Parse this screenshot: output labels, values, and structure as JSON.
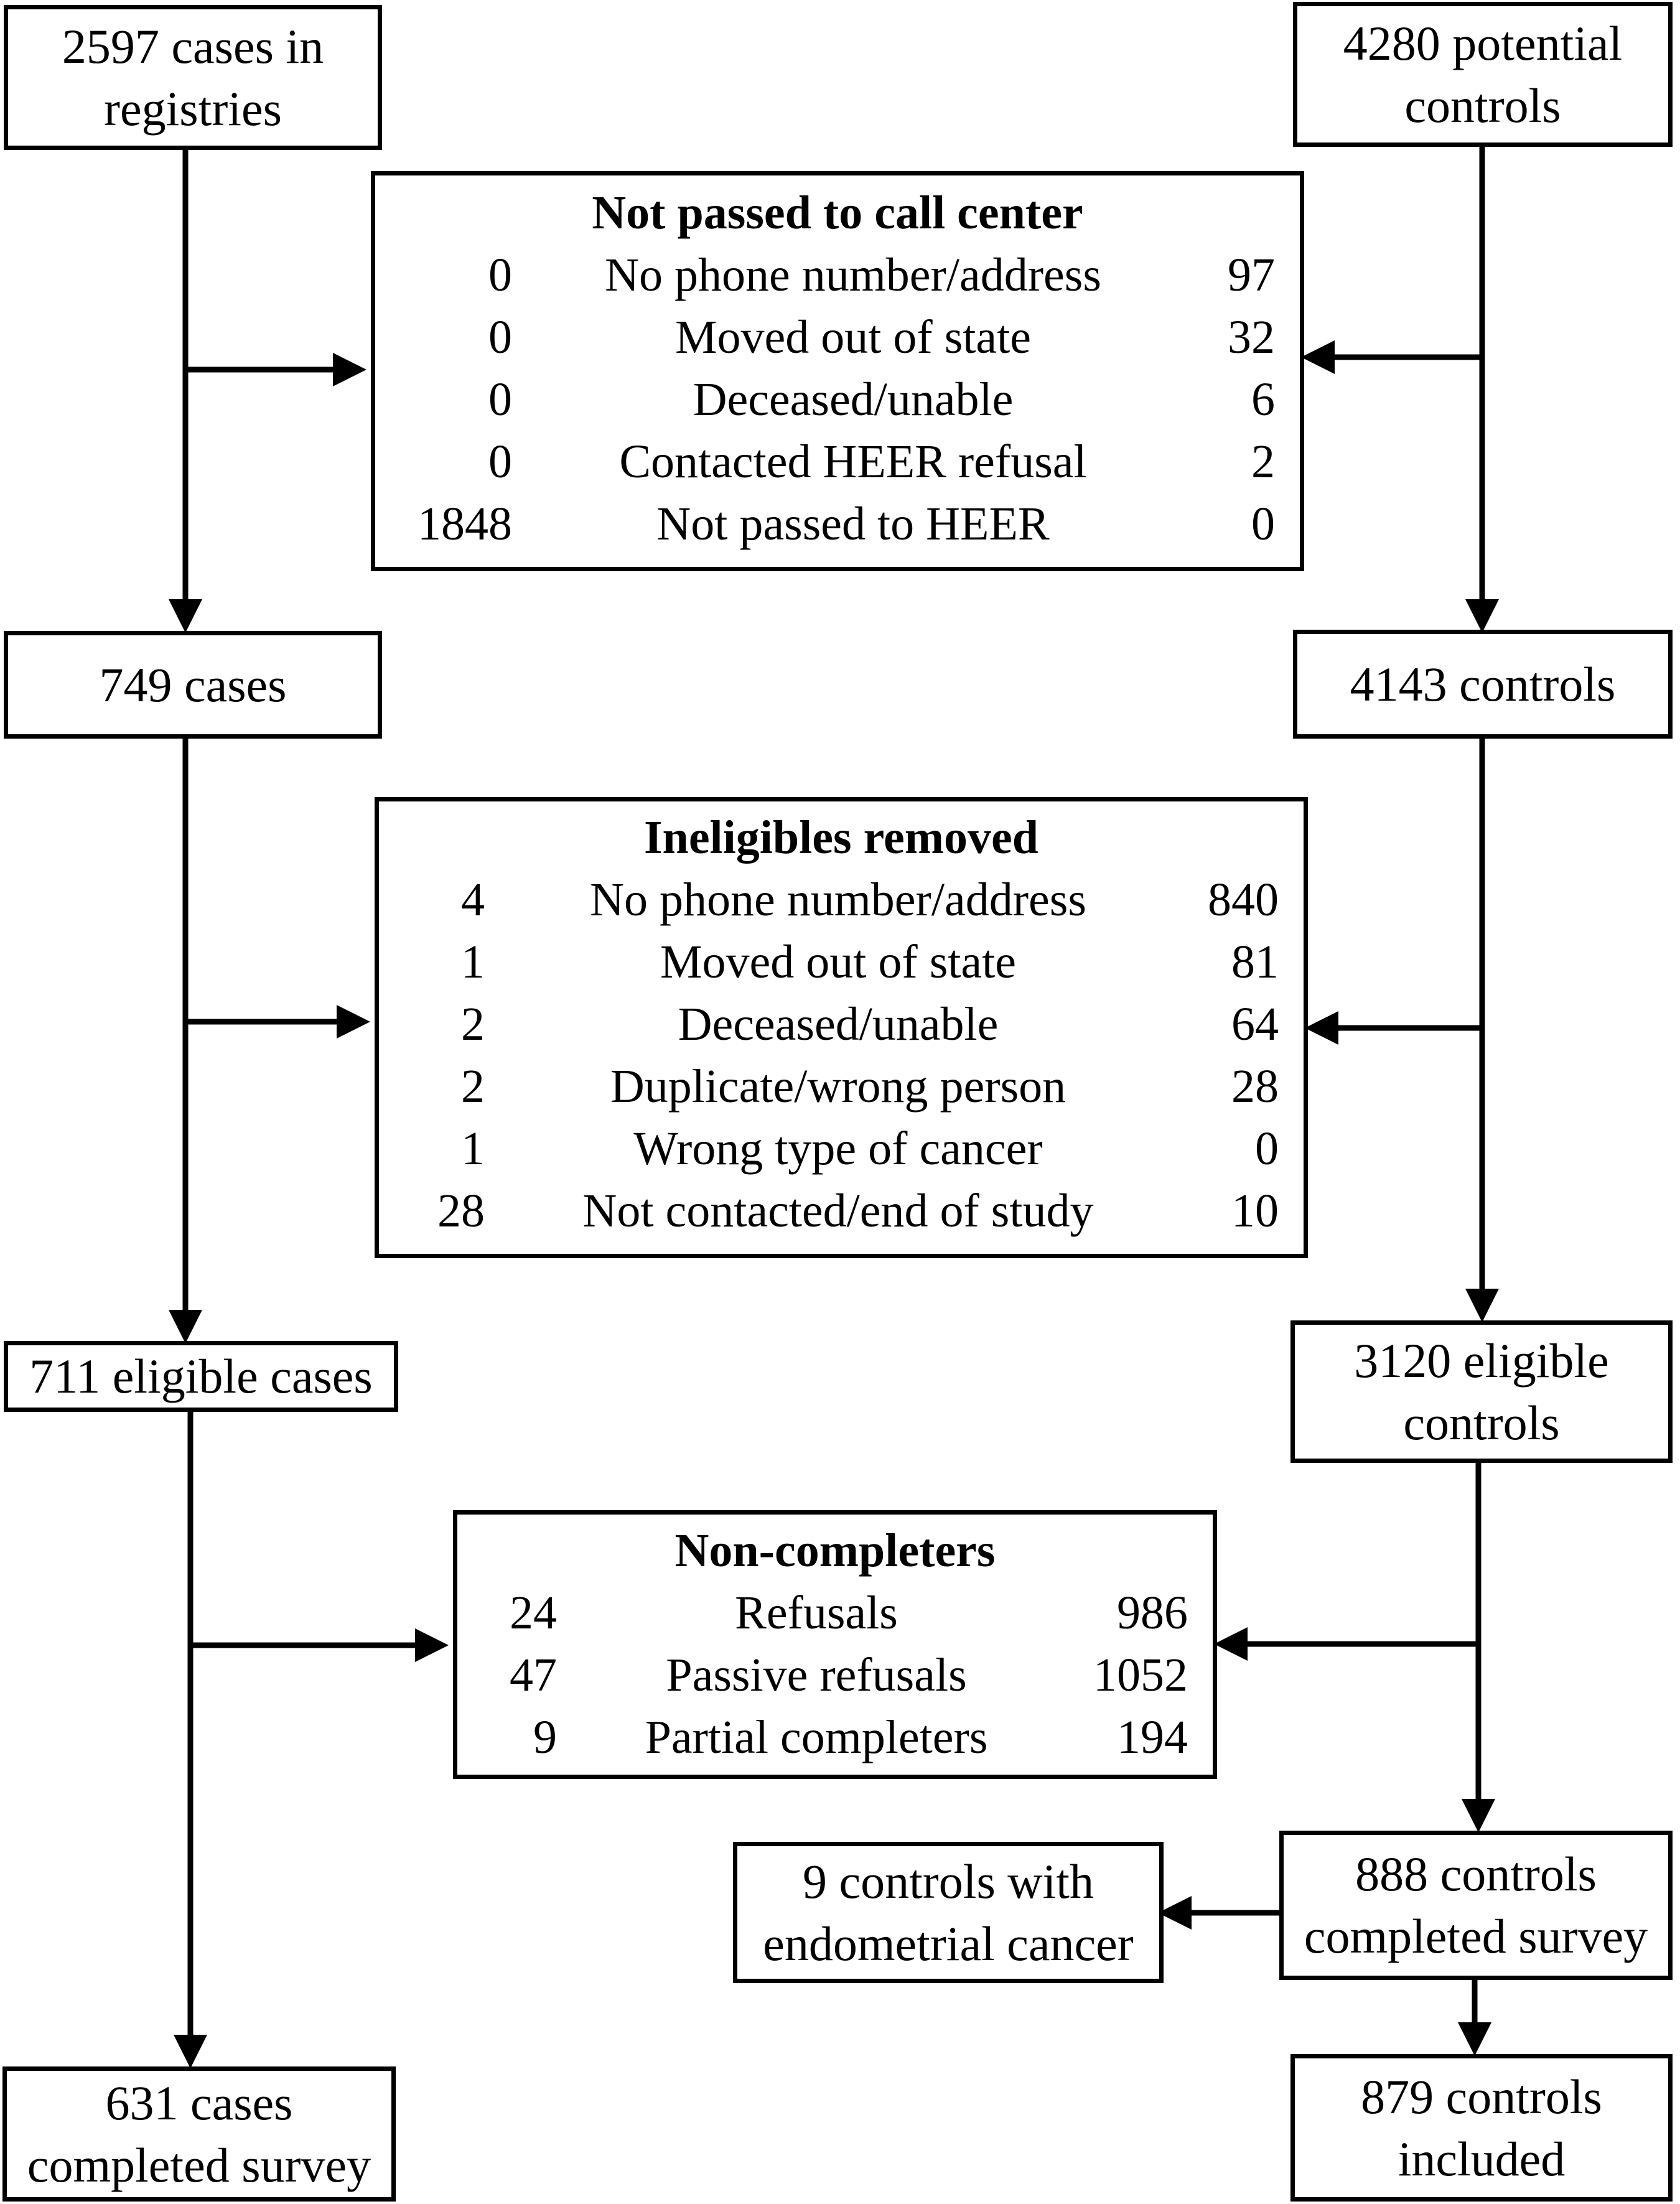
{
  "boxes": {
    "registry_cases": [
      "2597 cases in",
      "registries"
    ],
    "potential_controls": [
      "4280 potential",
      "controls"
    ],
    "cases_749": [
      "749 cases"
    ],
    "controls_4143": [
      "4143 controls"
    ],
    "eligible_cases": [
      "711 eligible cases"
    ],
    "eligible_controls": [
      "3120 eligible",
      "controls"
    ],
    "controls_completed": [
      "888 controls",
      "completed survey"
    ],
    "controls_endometrial": [
      "9 controls with",
      "endometrial cancer"
    ],
    "cases_completed": [
      "631 cases",
      "completed survey"
    ],
    "controls_included": [
      "879 controls",
      "included"
    ]
  },
  "tables": {
    "not_passed": {
      "title": "Not passed to call center",
      "rows": [
        {
          "cases": "0",
          "reason": "No phone number/address",
          "controls": "97"
        },
        {
          "cases": "0",
          "reason": "Moved out of state",
          "controls": "32"
        },
        {
          "cases": "0",
          "reason": "Deceased/unable",
          "controls": "6"
        },
        {
          "cases": "0",
          "reason": "Contacted HEER refusal",
          "controls": "2"
        },
        {
          "cases": "1848",
          "reason": "Not passed to HEER",
          "controls": "0"
        }
      ]
    },
    "ineligibles": {
      "title": "Ineligibles removed",
      "rows": [
        {
          "cases": "4",
          "reason": "No phone number/address",
          "controls": "840"
        },
        {
          "cases": "1",
          "reason": "Moved out of state",
          "controls": "81"
        },
        {
          "cases": "2",
          "reason": "Deceased/unable",
          "controls": "64"
        },
        {
          "cases": "2",
          "reason": "Duplicate/wrong person",
          "controls": "28"
        },
        {
          "cases": "1",
          "reason": "Wrong type of cancer",
          "controls": "0"
        },
        {
          "cases": "28",
          "reason": "Not contacted/end of study",
          "controls": "10"
        }
      ]
    },
    "non_completers": {
      "title": "Non-completers",
      "rows": [
        {
          "cases": "24",
          "reason": "Refusals",
          "controls": "986"
        },
        {
          "cases": "47",
          "reason": "Passive refusals",
          "controls": "1052"
        },
        {
          "cases": "9",
          "reason": "Partial completers",
          "controls": "194"
        }
      ]
    }
  }
}
